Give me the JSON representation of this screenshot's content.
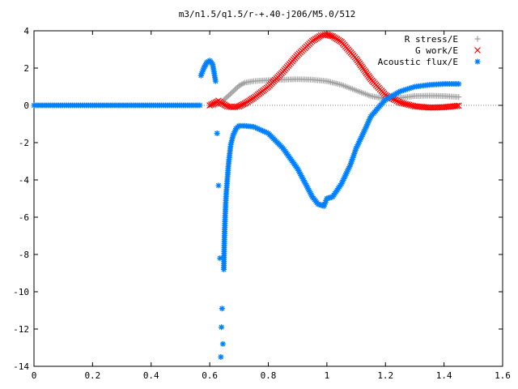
{
  "chart_data": {
    "type": "scatter",
    "title": "m3/n1.5/q1.5/r-+.40-j206/M5.0/512",
    "xlabel": "",
    "ylabel": "",
    "xlim": [
      0,
      1.6
    ],
    "ylim": [
      -14,
      4
    ],
    "xticks": [
      {
        "v": 0,
        "label": "0"
      },
      {
        "v": 0.2,
        "label": "0.2"
      },
      {
        "v": 0.4,
        "label": "0.4"
      },
      {
        "v": 0.6,
        "label": "0.6"
      },
      {
        "v": 0.8,
        "label": "0.8"
      },
      {
        "v": 1.0,
        "label": "1"
      },
      {
        "v": 1.2,
        "label": "1.2"
      },
      {
        "v": 1.4,
        "label": "1.4"
      },
      {
        "v": 1.6,
        "label": "1.6"
      }
    ],
    "yticks": [
      {
        "v": 4,
        "label": "4"
      },
      {
        "v": 2,
        "label": "2"
      },
      {
        "v": 0,
        "label": "0"
      },
      {
        "v": -2,
        "label": "-2"
      },
      {
        "v": -4,
        "label": "-4"
      },
      {
        "v": -6,
        "label": "-6"
      },
      {
        "v": -8,
        "label": "-8"
      },
      {
        "v": -10,
        "label": "-10"
      },
      {
        "v": -12,
        "label": "-12"
      },
      {
        "v": -14,
        "label": "-14"
      }
    ],
    "grid": false,
    "legend_position": "top-right",
    "series": [
      {
        "name": "R stress/E",
        "marker": "plus",
        "color": "#a0a0a0",
        "points": [
          [
            0.6,
            0.0
          ],
          [
            0.62,
            0.0
          ],
          [
            0.64,
            0.12
          ],
          [
            0.65,
            0.32
          ],
          [
            0.66,
            0.46
          ],
          [
            0.68,
            0.75
          ],
          [
            0.7,
            1.05
          ],
          [
            0.72,
            1.22
          ],
          [
            0.75,
            1.3
          ],
          [
            0.8,
            1.35
          ],
          [
            0.85,
            1.38
          ],
          [
            0.9,
            1.4
          ],
          [
            0.95,
            1.38
          ],
          [
            1.0,
            1.3
          ],
          [
            1.05,
            1.1
          ],
          [
            1.1,
            0.8
          ],
          [
            1.15,
            0.5
          ],
          [
            1.2,
            0.35
          ],
          [
            1.25,
            0.4
          ],
          [
            1.3,
            0.5
          ],
          [
            1.35,
            0.52
          ],
          [
            1.4,
            0.5
          ],
          [
            1.45,
            0.45
          ]
        ]
      },
      {
        "name": "G work/E",
        "marker": "cross",
        "color": "#ff0000",
        "points": [
          [
            0.6,
            0.0
          ],
          [
            0.62,
            0.15
          ],
          [
            0.63,
            0.25
          ],
          [
            0.64,
            0.12
          ],
          [
            0.66,
            -0.05
          ],
          [
            0.68,
            -0.1
          ],
          [
            0.7,
            -0.05
          ],
          [
            0.72,
            0.1
          ],
          [
            0.75,
            0.4
          ],
          [
            0.8,
            1.0
          ],
          [
            0.85,
            1.8
          ],
          [
            0.9,
            2.7
          ],
          [
            0.95,
            3.45
          ],
          [
            0.98,
            3.75
          ],
          [
            1.0,
            3.8
          ],
          [
            1.02,
            3.7
          ],
          [
            1.05,
            3.4
          ],
          [
            1.1,
            2.5
          ],
          [
            1.15,
            1.4
          ],
          [
            1.2,
            0.55
          ],
          [
            1.25,
            0.15
          ],
          [
            1.3,
            -0.05
          ],
          [
            1.35,
            -0.12
          ],
          [
            1.4,
            -0.1
          ],
          [
            1.45,
            -0.02
          ]
        ]
      },
      {
        "name": "Acoustic flux/E",
        "marker": "star",
        "color": "#0080ff",
        "points": [
          [
            0.57,
            1.6
          ],
          [
            0.58,
            2.0
          ],
          [
            0.59,
            2.3
          ],
          [
            0.6,
            2.4
          ],
          [
            0.61,
            2.2
          ],
          [
            0.62,
            1.3
          ],
          [
            0.625,
            -1.5
          ],
          [
            0.63,
            -4.3
          ],
          [
            0.635,
            -8.2
          ],
          [
            0.64,
            -11.9
          ],
          [
            0.645,
            -12.8
          ],
          [
            0.638,
            -13.5
          ],
          [
            0.642,
            -10.9
          ],
          [
            0.648,
            -8.8
          ],
          [
            0.65,
            -7.2
          ],
          [
            0.653,
            -5.8
          ],
          [
            0.656,
            -4.8
          ],
          [
            0.66,
            -4.0
          ],
          [
            0.664,
            -3.2
          ],
          [
            0.668,
            -2.6
          ],
          [
            0.672,
            -2.1
          ],
          [
            0.68,
            -1.6
          ],
          [
            0.69,
            -1.25
          ],
          [
            0.7,
            -1.1
          ],
          [
            0.72,
            -1.1
          ],
          [
            0.75,
            -1.15
          ],
          [
            0.8,
            -1.5
          ],
          [
            0.85,
            -2.3
          ],
          [
            0.9,
            -3.4
          ],
          [
            0.93,
            -4.3
          ],
          [
            0.95,
            -4.9
          ],
          [
            0.97,
            -5.3
          ],
          [
            0.99,
            -5.4
          ],
          [
            1.0,
            -5.0
          ],
          [
            1.02,
            -4.9
          ],
          [
            1.05,
            -4.2
          ],
          [
            1.08,
            -3.2
          ],
          [
            1.1,
            -2.3
          ],
          [
            1.13,
            -1.3
          ],
          [
            1.15,
            -0.6
          ],
          [
            1.18,
            -0.05
          ],
          [
            1.2,
            0.3
          ],
          [
            1.25,
            0.75
          ],
          [
            1.3,
            1.0
          ],
          [
            1.35,
            1.1
          ],
          [
            1.4,
            1.15
          ],
          [
            1.45,
            1.15
          ]
        ]
      }
    ]
  }
}
